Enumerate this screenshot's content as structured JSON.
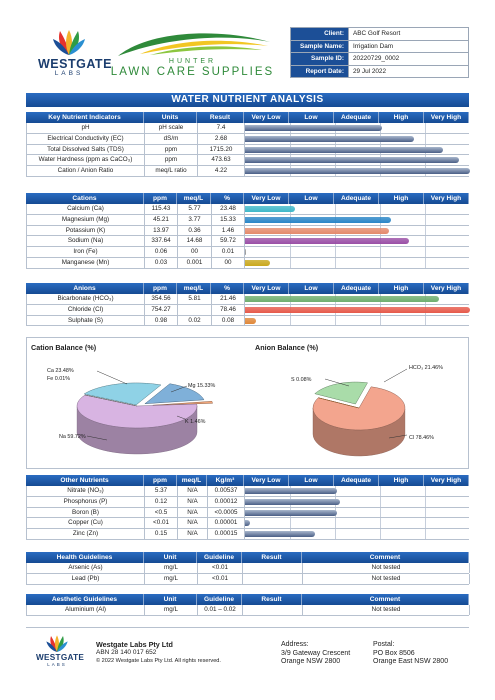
{
  "company": {
    "name": "WESTGATE",
    "sub": "LABS"
  },
  "partner": {
    "line1": "HUNTER",
    "line2": "LAWN CARE SUPPLIES"
  },
  "info": [
    {
      "key": "Client:",
      "value": "ABC Golf Resort"
    },
    {
      "key": "Sample Name:",
      "value": "Irrigation Dam"
    },
    {
      "key": "Sample ID:",
      "value": "20220729_0002"
    },
    {
      "key": "Report Date:",
      "value": "29 Jul 2022"
    }
  ],
  "title": "WATER NUTRIENT ANALYSIS",
  "levels": [
    "Very Low",
    "Low",
    "Adequate",
    "High",
    "Very High"
  ],
  "key_indicators": {
    "headers": [
      "Key Nutrient Indicators",
      "Units",
      "Result"
    ],
    "rows": [
      {
        "name": "pH",
        "unit": "pH scale",
        "result": "7.4",
        "level": 0.61
      },
      {
        "name": "Electrical Conductivity (EC)",
        "unit": "dS/m",
        "result": "2.68",
        "level": 0.75
      },
      {
        "name": "Total Dissolved Salts (TDS)",
        "unit": "ppm",
        "result": "1715.20",
        "level": 0.88
      },
      {
        "name": "Water Hardness (ppm as CaCO₃)",
        "unit": "ppm",
        "result": "473.63",
        "level": 0.95
      },
      {
        "name": "Cation / Anion Ratio",
        "unit": "meq/L ratio",
        "result": "4.22",
        "level": 1.0
      }
    ]
  },
  "cations": {
    "headers": [
      "Cations",
      "ppm",
      "meq/L",
      "%"
    ],
    "rows": [
      {
        "name": "Calcium (Ca)",
        "ppm": "115.43",
        "meq": "5.77",
        "pct": "23.48",
        "level": 0.22,
        "color": "#3fb8c9"
      },
      {
        "name": "Magnesium (Mg)",
        "ppm": "45.21",
        "meq": "3.77",
        "pct": "15.33",
        "level": 0.65,
        "color": "#2a86c7"
      },
      {
        "name": "Potassium (K)",
        "ppm": "13.97",
        "meq": "0.36",
        "pct": "1.46",
        "level": 0.64,
        "color": "#e48a6c"
      },
      {
        "name": "Sodium (Na)",
        "ppm": "337.64",
        "meq": "14.68",
        "pct": "59.72",
        "level": 0.73,
        "color": "#9a4fa6"
      },
      {
        "name": "Iron (Fe)",
        "ppm": "0.06",
        "meq": "00",
        "pct": "0.01",
        "level": 0.005,
        "color": "#999999"
      },
      {
        "name": "Manganese (Mn)",
        "ppm": "0.03",
        "meq": "0.001",
        "pct": "00",
        "level": 0.11,
        "color": "#c9a81e"
      }
    ]
  },
  "anions": {
    "headers": [
      "Anions",
      "ppm",
      "meq/L",
      "%"
    ],
    "rows": [
      {
        "name": "Bicarbonate (HCO₃)",
        "ppm": "354.56",
        "meq": "5.81",
        "pct": "21.46",
        "level": 0.86,
        "color": "#6fae6f"
      },
      {
        "name": "Chloride (Cl)",
        "ppm": "754.27",
        "meq": "",
        "pct": "78.46",
        "level": 1.0,
        "color": "#e65a4b"
      },
      {
        "name": "Sulphate (S)",
        "ppm": "0.98",
        "meq": "0.02",
        "pct": "0.08",
        "level": 0.05,
        "color": "#e0883a"
      }
    ]
  },
  "chart_data": [
    {
      "type": "pie",
      "title": "Cation Balance (%)",
      "labels": [
        "Ca 23.48%",
        "Mg 15.33%",
        "K 1.46%",
        "Na 59.72%",
        "Fe 0.01%"
      ],
      "categories": [
        "Ca",
        "Mg",
        "K",
        "Na",
        "Fe"
      ],
      "values": [
        23.48,
        15.33,
        1.46,
        59.72,
        0.01
      ],
      "colors": [
        "#8fd2e6",
        "#7fb0d9",
        "#f0a57a",
        "#d8b4e2",
        "#aaaaaa"
      ]
    },
    {
      "type": "pie",
      "title": "Anion Balance (%)",
      "labels": [
        "HCO₃ 21.46%",
        "Cl 78.46%",
        "S 0.08%"
      ],
      "categories": [
        "HCO3",
        "Cl",
        "S"
      ],
      "values": [
        21.46,
        78.46,
        0.08
      ],
      "colors": [
        "#a9dca9",
        "#f3a58e",
        "#e0883a"
      ]
    }
  ],
  "other_nutrients": {
    "headers": [
      "Other Nutrients",
      "ppm",
      "meq/L",
      "Kg/m³"
    ],
    "rows": [
      {
        "name": "Nitrate (NO₃)",
        "ppm": "5.37",
        "meq": "N/A",
        "kg": "0.00537",
        "level": 0.41
      },
      {
        "name": "Phosphorus (P)",
        "ppm": "0.12",
        "meq": "N/A",
        "kg": "0.00012",
        "level": 0.42
      },
      {
        "name": "Boron (B)",
        "ppm": "<0.5",
        "meq": "N/A",
        "kg": "<0.0005",
        "level": 0.41
      },
      {
        "name": "Copper (Cu)",
        "ppm": "<0.01",
        "meq": "N/A",
        "kg": "0.00001",
        "level": 0.02
      },
      {
        "name": "Zinc (Zn)",
        "ppm": "0.15",
        "meq": "N/A",
        "kg": "0.00015",
        "level": 0.31
      }
    ]
  },
  "health": {
    "headers": [
      "Health Guidelines",
      "Unit",
      "Guideline",
      "Result",
      "Comment"
    ],
    "rows": [
      {
        "name": "Arsenic (As)",
        "unit": "mg/L",
        "guideline": "<0.01",
        "result": "",
        "comment": "Not tested"
      },
      {
        "name": "Lead (Pb)",
        "unit": "mg/L",
        "guideline": "<0.01",
        "result": "",
        "comment": "Not tested"
      }
    ]
  },
  "aesthetic": {
    "headers": [
      "Aesthetic Guidelines",
      "Unit",
      "Guideline",
      "Result",
      "Comment"
    ],
    "rows": [
      {
        "name": "Aluminium (Al)",
        "unit": "mg/L",
        "guideline": "0.01 – 0.02",
        "result": "",
        "comment": "Not tested"
      }
    ]
  },
  "footer": {
    "company": "Westgate Labs Pty Ltd",
    "abn": "ABN 28 140 017 652",
    "copyright": "© 2022 Westgate Labs Pty Ltd. All rights reserved.",
    "address": [
      "Address:",
      "3/9 Gateway Crescent",
      "Orange NSW 2800"
    ],
    "postal": [
      "Postal:",
      "PO Box 8506",
      "Orange East NSW 2800"
    ]
  }
}
